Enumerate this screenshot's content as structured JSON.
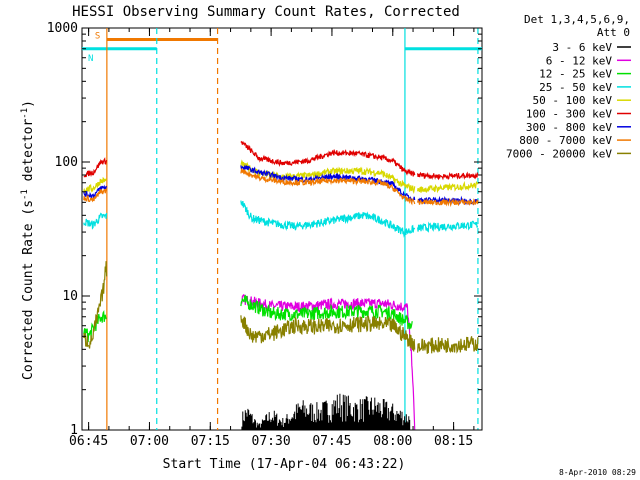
{
  "chart_data": {
    "type": "line",
    "title": "HESSI Observing Summary Count Rates, Corrected",
    "xlabel": "Start Time (17-Apr-04 06:43:22)",
    "ylabel": "Corrected Count Rate (s",
    "ylabel_sup": "-1",
    "ylabel_mid": " detector",
    "ylabel_close": ")",
    "yscale": "log",
    "ylim": [
      1,
      1000
    ],
    "xlim": [
      6.7228,
      8.3667
    ],
    "x_ticks": [
      {
        "h": 6.75,
        "label": "06:45"
      },
      {
        "h": 7.0,
        "label": "07:00"
      },
      {
        "h": 7.25,
        "label": "07:15"
      },
      {
        "h": 7.5,
        "label": "07:30"
      },
      {
        "h": 7.75,
        "label": "07:45"
      },
      {
        "h": 8.0,
        "label": "08:00"
      },
      {
        "h": 8.25,
        "label": "08:15"
      }
    ],
    "y_ticks": [
      {
        "v": 1,
        "label": "1"
      },
      {
        "v": 10,
        "label": "10"
      },
      {
        "v": 100,
        "label": "100"
      },
      {
        "v": 1000,
        "label": "1000"
      }
    ],
    "legend_header": [
      "Det 1,3,4,5,6,9,",
      "Att 0"
    ],
    "legend_position": "right",
    "series": [
      {
        "name": "3 - 6 keV",
        "color": "#000000",
        "points": [
          [
            7.38,
            1.3
          ],
          [
            7.4,
            1.5
          ],
          [
            7.45,
            1.1
          ],
          [
            7.5,
            1.4
          ],
          [
            7.55,
            1.2
          ],
          [
            7.62,
            1.6
          ],
          [
            7.7,
            1.5
          ],
          [
            7.78,
            1.8
          ],
          [
            7.85,
            1.6
          ],
          [
            7.92,
            1.7
          ],
          [
            8.0,
            1.5
          ],
          [
            8.07,
            1.3
          ]
        ]
      },
      {
        "name": "6 - 12 keV",
        "color": "#e000e0",
        "points": [
          [
            7.38,
            9.5
          ],
          [
            7.5,
            8.4
          ],
          [
            7.62,
            8.3
          ],
          [
            7.75,
            8.7
          ],
          [
            7.85,
            8.8
          ],
          [
            7.95,
            8.8
          ],
          [
            8.0,
            8.6
          ],
          [
            8.06,
            8.2
          ],
          [
            8.08,
            3.0
          ],
          [
            8.09,
            1.0
          ]
        ]
      },
      {
        "name": "12 - 25 keV",
        "color": "#00e000",
        "points": [
          [
            6.73,
            5.5
          ],
          [
            6.75,
            5.0
          ],
          [
            6.8,
            7.0
          ],
          [
            7.38,
            9.3
          ],
          [
            7.5,
            7.4
          ],
          [
            7.62,
            7.3
          ],
          [
            7.75,
            7.6
          ],
          [
            7.85,
            7.7
          ],
          [
            7.95,
            7.7
          ],
          [
            8.0,
            7.4
          ],
          [
            8.08,
            6.0
          ]
        ]
      },
      {
        "name": "25 - 50 keV",
        "color": "#00e0e0",
        "points": [
          [
            6.73,
            36
          ],
          [
            6.77,
            34
          ],
          [
            6.8,
            39
          ],
          [
            7.38,
            50
          ],
          [
            7.42,
            38
          ],
          [
            7.5,
            35
          ],
          [
            7.6,
            33
          ],
          [
            7.7,
            35
          ],
          [
            7.8,
            38
          ],
          [
            7.88,
            40
          ],
          [
            7.95,
            37
          ],
          [
            8.0,
            33
          ],
          [
            8.05,
            30
          ],
          [
            8.1,
            32
          ],
          [
            8.2,
            33
          ],
          [
            8.35,
            34
          ]
        ]
      },
      {
        "name": "50 - 100 keV",
        "color": "#d8d800",
        "points": [
          [
            6.73,
            62
          ],
          [
            6.77,
            64
          ],
          [
            6.8,
            72
          ],
          [
            7.38,
            96
          ],
          [
            7.45,
            83
          ],
          [
            7.55,
            77
          ],
          [
            7.65,
            79
          ],
          [
            7.75,
            85
          ],
          [
            7.85,
            86
          ],
          [
            7.95,
            83
          ],
          [
            8.0,
            75
          ],
          [
            8.05,
            66
          ],
          [
            8.1,
            62
          ],
          [
            8.2,
            64
          ],
          [
            8.35,
            67
          ]
        ]
      },
      {
        "name": "100 - 300 keV",
        "color": "#e00000",
        "points": [
          [
            6.73,
            80
          ],
          [
            6.77,
            84
          ],
          [
            6.8,
            100
          ],
          [
            7.38,
            140
          ],
          [
            7.45,
            107
          ],
          [
            7.55,
            98
          ],
          [
            7.65,
            102
          ],
          [
            7.75,
            117
          ],
          [
            7.85,
            116
          ],
          [
            7.95,
            108
          ],
          [
            8.0,
            102
          ],
          [
            8.05,
            85
          ],
          [
            8.1,
            80
          ],
          [
            8.2,
            78
          ],
          [
            8.35,
            80
          ]
        ]
      },
      {
        "name": "300 - 800 keV",
        "color": "#0000e0",
        "points": [
          [
            6.73,
            58
          ],
          [
            6.77,
            56
          ],
          [
            6.8,
            64
          ],
          [
            7.38,
            92
          ],
          [
            7.45,
            84
          ],
          [
            7.55,
            76
          ],
          [
            7.65,
            74
          ],
          [
            7.75,
            78
          ],
          [
            7.85,
            76
          ],
          [
            7.95,
            72
          ],
          [
            8.0,
            68
          ],
          [
            8.05,
            56
          ],
          [
            8.1,
            52
          ],
          [
            8.2,
            52
          ],
          [
            8.35,
            51
          ]
        ]
      },
      {
        "name": "800 - 7000 keV",
        "color": "#f07800",
        "points": [
          [
            6.73,
            54
          ],
          [
            6.77,
            52
          ],
          [
            6.8,
            60
          ],
          [
            7.38,
            86
          ],
          [
            7.45,
            76
          ],
          [
            7.55,
            71
          ],
          [
            7.65,
            70
          ],
          [
            7.75,
            73
          ],
          [
            7.85,
            72
          ],
          [
            7.95,
            70
          ],
          [
            8.0,
            64
          ],
          [
            8.05,
            53
          ],
          [
            8.1,
            50
          ],
          [
            8.2,
            50
          ],
          [
            8.35,
            50
          ]
        ]
      },
      {
        "name": "7000 - 20000 keV",
        "color": "#888000",
        "points": [
          [
            6.73,
            4.8
          ],
          [
            6.76,
            4.5
          ],
          [
            6.79,
            7.5
          ],
          [
            6.81,
            11.0
          ],
          [
            6.82,
            16.0
          ],
          [
            7.38,
            6.8
          ],
          [
            7.42,
            5.0
          ],
          [
            7.5,
            5.2
          ],
          [
            7.6,
            6.0
          ],
          [
            7.7,
            5.9
          ],
          [
            7.8,
            6.1
          ],
          [
            7.9,
            6.2
          ],
          [
            8.0,
            6.0
          ],
          [
            8.05,
            5.0
          ],
          [
            8.1,
            4.2
          ],
          [
            8.2,
            4.3
          ],
          [
            8.35,
            4.4
          ]
        ]
      }
    ],
    "gaps": [
      [
        6.825,
        7.375
      ],
      [
        8.09,
        8.1
      ]
    ],
    "status_bars": [
      {
        "label": "S",
        "color": "#f07800",
        "x_start": 6.825,
        "x_end": 7.28,
        "y": 820
      },
      {
        "label": "N",
        "color": "#00e0e0",
        "x_start": 6.7228,
        "x_end": 7.03,
        "y": 700
      },
      {
        "label": "",
        "color": "#00e0e0",
        "x_start": 8.05,
        "x_end": 8.3667,
        "y": 700
      }
    ],
    "vertical_lines": [
      {
        "h": 6.825,
        "color": "#f07800",
        "style": "solid"
      },
      {
        "h": 7.03,
        "color": "#00e0e0",
        "style": "dashed"
      },
      {
        "h": 7.28,
        "color": "#f07800",
        "style": "dashed"
      },
      {
        "h": 8.05,
        "color": "#00e0e0",
        "style": "solid"
      },
      {
        "h": 8.35,
        "color": "#00e0e0",
        "style": "dashed"
      }
    ],
    "timestamp": "8-Apr-2010 08:29"
  }
}
